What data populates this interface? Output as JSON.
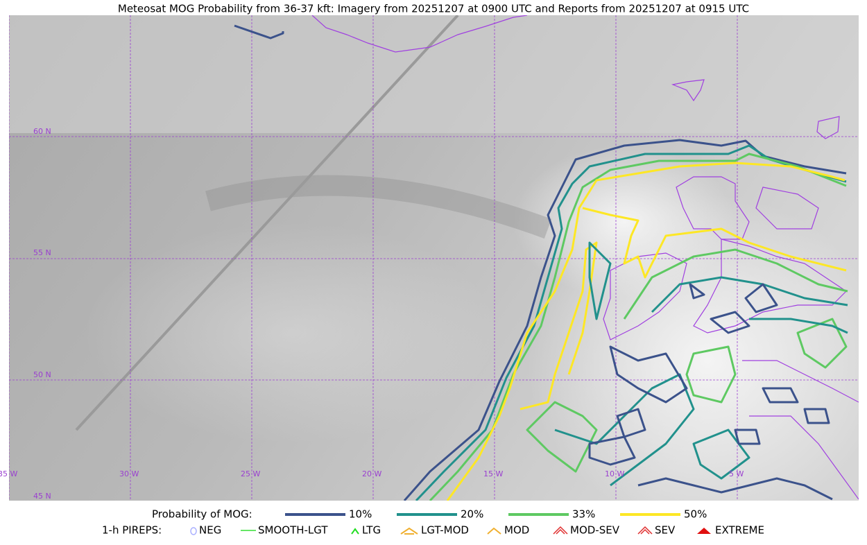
{
  "title": "Meteosat MOG Probability from 36-37 kft: Imagery from 20251207 at 0900 UTC and Reports from 20251207 at 0915 UTC",
  "latitude_labels": [
    "60 N",
    "55 N",
    "50 N",
    "45 N"
  ],
  "longitude_labels": [
    "35 W",
    "30 W",
    "25 W",
    "20 W",
    "15 W",
    "10 W",
    "5 W"
  ],
  "legend": {
    "title": "Probability of MOG:",
    "items": [
      {
        "label": "10%",
        "color": "#3b528b"
      },
      {
        "label": "20%",
        "color": "#21918c"
      },
      {
        "label": "33%",
        "color": "#5ec962"
      },
      {
        "label": "50%",
        "color": "#fde725"
      }
    ]
  },
  "pireps": {
    "title": "1-h PIREPS:",
    "items": [
      {
        "label": "NEG"
      },
      {
        "label": "SMOOTH-LGT"
      },
      {
        "label": "LTG"
      },
      {
        "label": "LGT-MOD"
      },
      {
        "label": "MOD"
      },
      {
        "label": "MOD-SEV"
      },
      {
        "label": "SEV"
      },
      {
        "label": "EXTREME"
      }
    ]
  }
}
